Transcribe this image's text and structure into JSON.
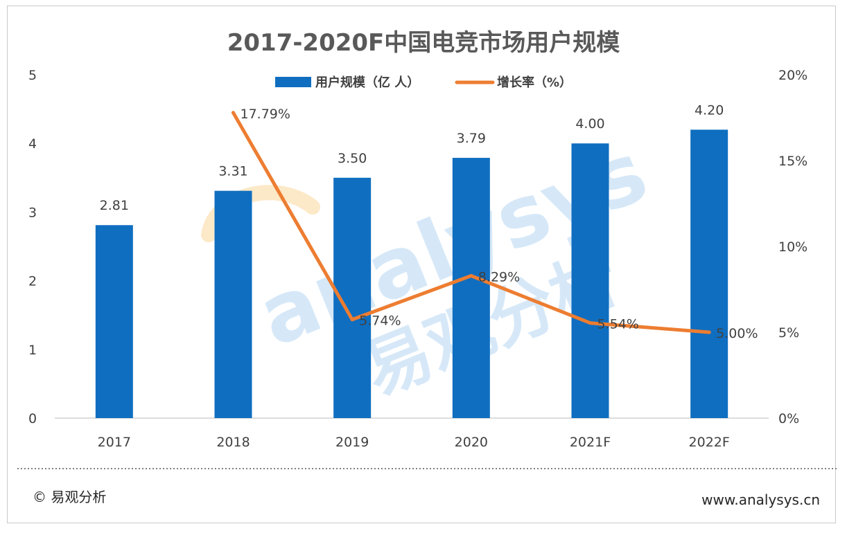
{
  "chart_data": {
    "type": "bar",
    "title": "2017-2020F中国电竞市场用户规模",
    "categories": [
      "2017",
      "2018",
      "2019",
      "2020",
      "2021F",
      "2022F"
    ],
    "series": [
      {
        "name": "用户规模（亿 人）",
        "type": "bar",
        "axis": "left",
        "values": [
          2.81,
          3.31,
          3.5,
          3.79,
          4.0,
          4.2
        ],
        "labels": [
          "2.81",
          "3.31",
          "3.50",
          "3.79",
          "4.00",
          "4.20"
        ],
        "color": "#0F6EC0"
      },
      {
        "name": "增长率（%）",
        "type": "line",
        "axis": "right",
        "values": [
          null,
          17.79,
          5.74,
          8.29,
          5.54,
          5.0
        ],
        "labels": [
          "",
          "17.79%",
          "5.74%",
          "8.29%",
          "5.54%",
          "5.00%"
        ],
        "color": "#ED7D31"
      }
    ],
    "y_left": {
      "ylim": [
        0,
        5
      ],
      "ticks": [
        "0",
        "1",
        "2",
        "3",
        "4",
        "5"
      ]
    },
    "y_right": {
      "ylim": [
        0,
        20
      ],
      "ticks": [
        "0%",
        "5%",
        "10%",
        "15%",
        "20%"
      ]
    },
    "legend_position": "top-center",
    "grid": false
  },
  "footer": {
    "copyright": "© 易观分析",
    "website": "www.analysys.cn"
  },
  "watermark": {
    "latin": "analysys",
    "chinese": "易观分析",
    "color": "#4A9BE0",
    "accent": "#F5A623"
  }
}
